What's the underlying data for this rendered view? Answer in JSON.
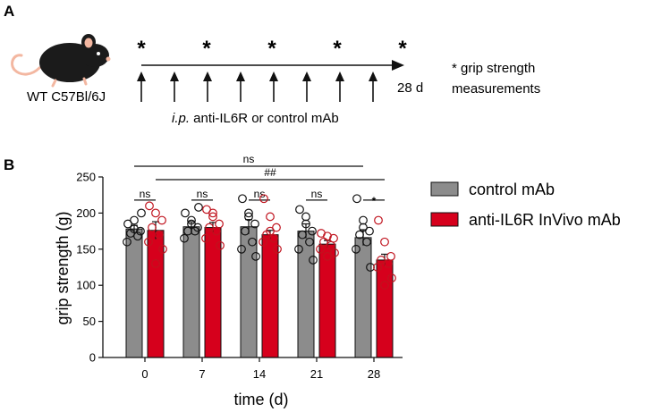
{
  "panel_a": {
    "label": "A",
    "strain_label": "WT C57Bl/6J",
    "day_label": "28 d",
    "injection_label_italic": "i.p.",
    "injection_label_rest": " anti-IL6R or control mAb",
    "star_symbol": "*",
    "note_line1": "* grip strength",
    "note_line2": "measurements",
    "star_count": 5,
    "injection_arrow_count": 8
  },
  "panel_b": {
    "label": "B"
  },
  "colors": {
    "control": "#8c8c8c",
    "anti_il6r": "#d6001c",
    "control_marker": "#111111",
    "anti_marker": "#c0131e"
  },
  "chart_data": {
    "type": "bar",
    "title": "",
    "xlabel": "time (d)",
    "ylabel": "grip strength (g)",
    "ylim": [
      0,
      250
    ],
    "yticks": [
      "0",
      "50",
      "100",
      "150",
      "200",
      "250"
    ],
    "categories": [
      "0",
      "7",
      "14",
      "21",
      "28"
    ],
    "series": [
      {
        "name": "control mAb",
        "values": [
          178,
          181,
          181,
          175,
          166
        ],
        "sem": [
          5,
          7,
          10,
          10,
          11
        ],
        "points": [
          [
            185,
            178,
            175,
            172,
            168,
            160,
            200,
            190
          ],
          [
            200,
            190,
            180,
            175,
            175,
            165,
            208,
            185
          ],
          [
            220,
            200,
            185,
            175,
            160,
            150,
            140,
            195
          ],
          [
            205,
            195,
            175,
            170,
            160,
            150,
            135,
            185
          ],
          [
            220,
            190,
            175,
            170,
            160,
            150,
            125,
            180
          ]
        ]
      },
      {
        "name": "anti-IL6R InVivo mAb",
        "values": [
          176,
          180,
          170,
          157,
          135
        ],
        "sem": [
          12,
          7,
          6,
          5,
          8
        ],
        "points": [
          [
            210,
            200,
            190,
            180,
            170,
            160,
            150,
            130
          ],
          [
            205,
            195,
            185,
            180,
            175,
            165,
            155,
            200
          ],
          [
            220,
            195,
            180,
            170,
            165,
            160,
            150,
            175
          ],
          [
            172,
            168,
            165,
            160,
            155,
            150,
            145,
            140
          ],
          [
            190,
            160,
            140,
            135,
            130,
            125,
            110,
            100
          ]
        ]
      }
    ],
    "comparisons": [
      {
        "type": "pair",
        "category": "0",
        "label": "ns"
      },
      {
        "type": "pair",
        "category": "7",
        "label": "ns"
      },
      {
        "type": "pair",
        "category": "14",
        "label": "ns"
      },
      {
        "type": "pair",
        "category": "21",
        "label": "ns"
      },
      {
        "type": "pair",
        "category": "28",
        "label": "*"
      },
      {
        "type": "across",
        "from": "0",
        "to": "28",
        "series": "control mAb",
        "label": "ns"
      },
      {
        "type": "across",
        "from": "0",
        "to": "28",
        "series": "anti-IL6R InVivo mAb",
        "label": "##"
      }
    ],
    "legend": [
      "control mAb",
      "anti-IL6R InVivo mAb"
    ],
    "legend_position": "right"
  }
}
